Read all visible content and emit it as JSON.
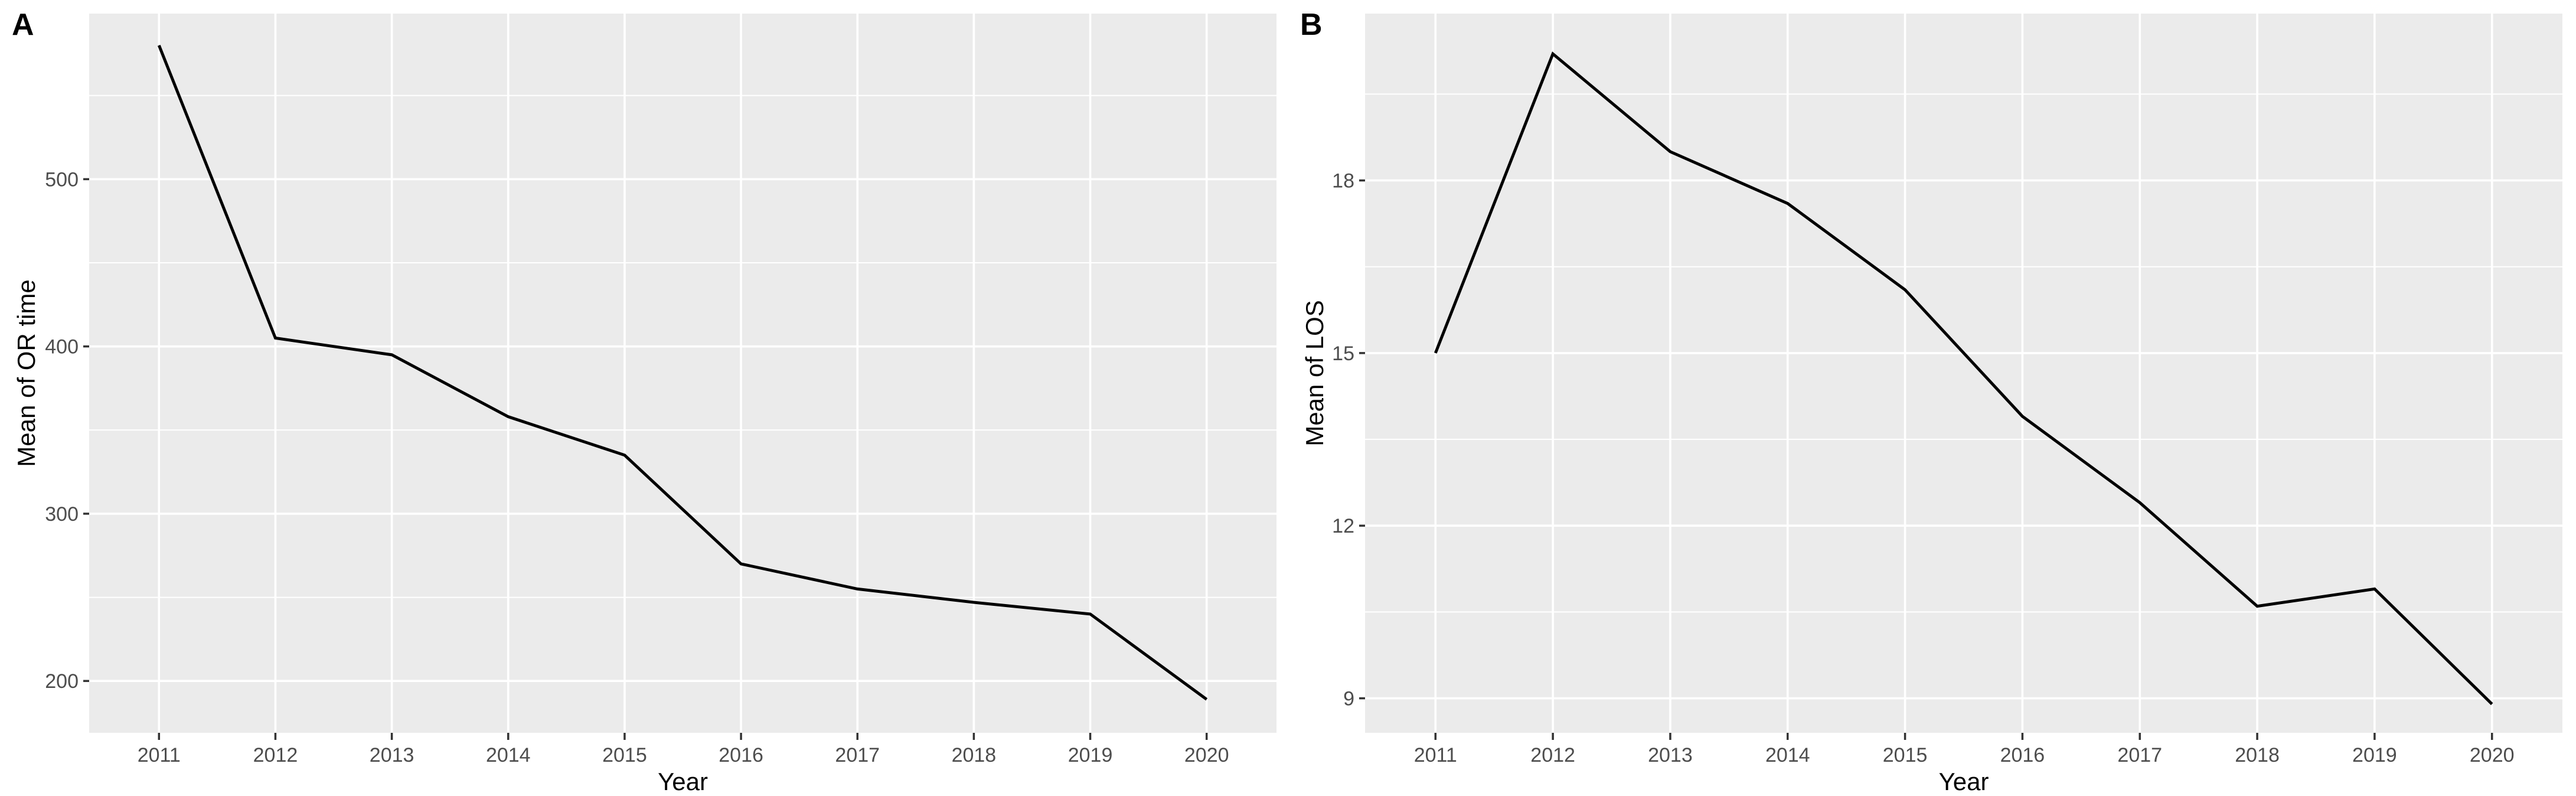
{
  "figure": {
    "background": "#FFFFFF",
    "panel_background": "#EBEBEB",
    "grid_color": "#FFFFFF",
    "series_color": "#000000",
    "tick_mark_color": "#333333",
    "tick_label_color": "#4D4D4D",
    "axis_title_color": "#000000"
  },
  "chart_data": [
    {
      "type": "line",
      "panel_label": "A",
      "x_label": "Year",
      "y_label": "Mean of OR time",
      "categories": [
        "2011",
        "2012",
        "2013",
        "2014",
        "2015",
        "2016",
        "2017",
        "2018",
        "2019",
        "2020"
      ],
      "values": [
        580,
        405,
        395,
        358,
        335,
        270,
        255,
        247,
        240,
        189
      ],
      "y_ticks": [
        500,
        400,
        300,
        200
      ],
      "y_minor_ticks": [
        550,
        450,
        350,
        250
      ],
      "ylim": [
        169,
        599
      ],
      "grid": "major-and-minor",
      "legend": "none"
    },
    {
      "type": "line",
      "panel_label": "B",
      "x_label": "Year",
      "y_label": "Mean of LOS",
      "categories": [
        "2011",
        "2012",
        "2013",
        "2014",
        "2015",
        "2016",
        "2017",
        "2018",
        "2019",
        "2020"
      ],
      "values": [
        15.0,
        20.2,
        18.5,
        17.6,
        16.1,
        13.9,
        12.4,
        10.6,
        10.9,
        8.9
      ],
      "y_ticks": [
        18,
        15,
        12,
        9
      ],
      "y_minor_ticks": [
        19.5,
        16.5,
        13.5,
        10.5
      ],
      "ylim": [
        8.4,
        20.9
      ],
      "grid": "major-and-minor",
      "legend": "none"
    }
  ]
}
